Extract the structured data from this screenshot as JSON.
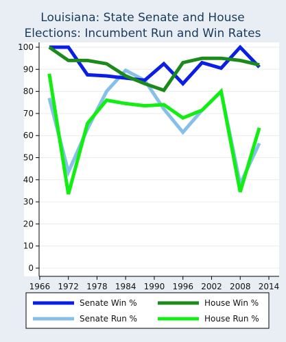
{
  "chart_data": {
    "type": "line",
    "title_lines": [
      "Louisiana: State Senate and House",
      "Elections: Incumbent Run and Win Rates"
    ],
    "xlabel": "",
    "ylabel": "",
    "xlim": [
      1964,
      2014
    ],
    "ylim": [
      0,
      100
    ],
    "x_ticks": [
      1966,
      1972,
      1978,
      1984,
      1990,
      1996,
      2002,
      2008,
      2014
    ],
    "y_ticks": [
      0,
      10,
      20,
      30,
      40,
      50,
      60,
      70,
      80,
      90,
      100
    ],
    "grid": "horizontal",
    "legend_position": "bottom",
    "series": [
      {
        "name": "Senate Win %",
        "color": "#0a1ee6",
        "x": [
          1968,
          1972,
          1976,
          1980,
          1984,
          1988,
          1992,
          1996,
          2000,
          2004,
          2008,
          2012
        ],
        "values": [
          100,
          100,
          87.5,
          87,
          86,
          85,
          92.5,
          83.5,
          93,
          90.5,
          100,
          91
        ]
      },
      {
        "name": "House Win %",
        "color": "#1b8a1b",
        "x": [
          1968,
          1972,
          1976,
          1980,
          1984,
          1988,
          1992,
          1996,
          2000,
          2004,
          2008,
          2012
        ],
        "values": [
          100,
          94,
          94,
          92.5,
          87,
          83.5,
          80.5,
          93,
          95,
          95,
          94,
          92
        ]
      },
      {
        "name": "Senate Run %",
        "color": "#86c0e8",
        "x": [
          1968,
          1972,
          1976,
          1980,
          1984,
          1988,
          1992,
          1996,
          2000,
          2004,
          2008,
          2012
        ],
        "values": [
          77,
          43.5,
          63,
          80,
          89.5,
          85,
          72,
          61.5,
          71.5,
          80,
          38,
          56.5
        ]
      },
      {
        "name": "House Run %",
        "color": "#11ee11",
        "x": [
          1968,
          1972,
          1976,
          1980,
          1984,
          1988,
          1992,
          1996,
          2000,
          2004,
          2008,
          2012
        ],
        "values": [
          88,
          33.5,
          65.5,
          76,
          74.5,
          73.5,
          74,
          68,
          71.5,
          80,
          34.5,
          63.5
        ]
      }
    ],
    "legend_order": [
      "Senate Win %",
      "House Win %",
      "Senate Run %",
      "House Run %"
    ]
  }
}
